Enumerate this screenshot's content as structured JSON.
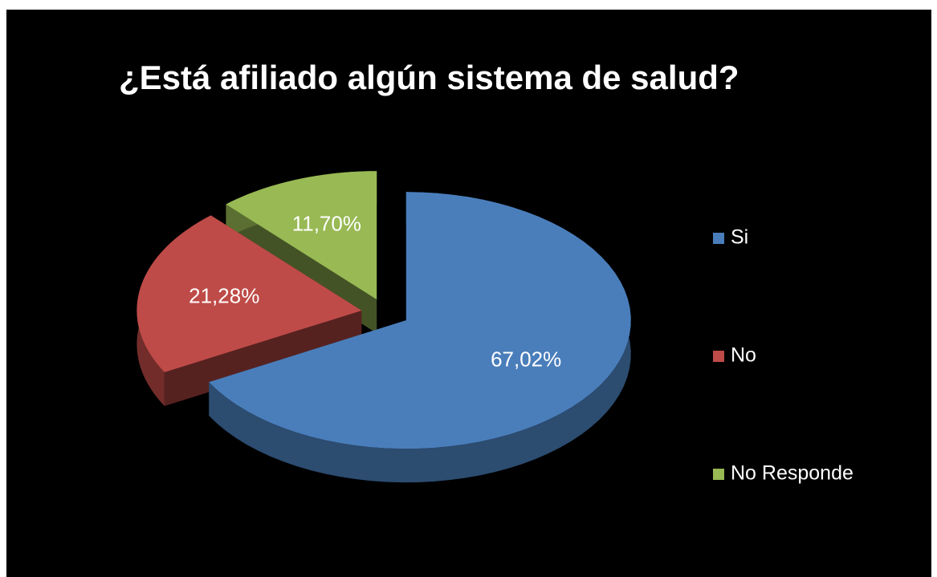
{
  "chart_data": {
    "type": "pie",
    "title": "¿Está afiliado algún sistema de salud?",
    "categories": [
      "Si",
      "No",
      "No Responde"
    ],
    "values": [
      67.02,
      21.28,
      11.7
    ],
    "value_labels": [
      "67,02%",
      "21,28%",
      "11,70%"
    ],
    "colors": [
      "#4a7ebb",
      "#be4b48",
      "#98b954"
    ],
    "legend": "right"
  }
}
